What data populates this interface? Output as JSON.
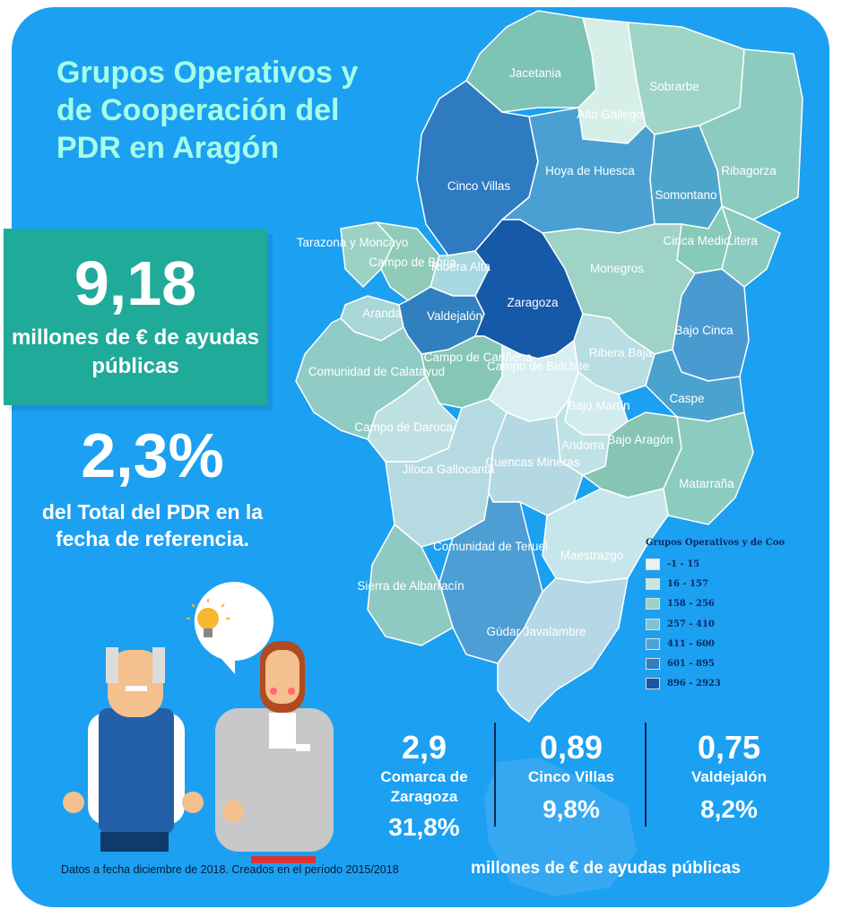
{
  "title": "Grupos Operativos y de Cooperación del PDR en Aragón",
  "headline": {
    "amount": "9,18",
    "amount_label": "millones de € de ayudas públicas"
  },
  "share": {
    "percent": "2,3%",
    "label": "del Total del PDR en la fecha de referencia."
  },
  "map_comarcas": [
    "Jacetania",
    "Sobrarbe",
    "Alto Gallego",
    "Cinco Villas",
    "Hoya de Huesca",
    "Ribagorza",
    "Somontano",
    "Tarazona y Moncayo",
    "Campo de Borja",
    "Ribera Alta",
    "Cinca Medio",
    "Litera",
    "Monegros",
    "Zaragoza",
    "Aranda",
    "Valdejalón",
    "Bajo Cinca",
    "Ribera Baja",
    "Campo de Cariñena",
    "Campo de Belchite",
    "Comunidad de Calatayud",
    "Caspe",
    "Bajo Martín",
    "Campo de Daroca",
    "Andorra",
    "Bajo Aragón",
    "Jiloca Gallocanta",
    "Cuencas Mineras",
    "Matarraña",
    "Comunidad de Teruel",
    "Maestrazgo",
    "Sierra de Albarracín",
    "Gúdar Javalambre"
  ],
  "legend": {
    "title": "Grupos Operativos y de Coo",
    "classes": [
      {
        "label": "-1 - 15",
        "color": "#e7f4f2"
      },
      {
        "label": "16 - 157",
        "color": "#c7e8df"
      },
      {
        "label": "158 - 256",
        "color": "#9dd3c3"
      },
      {
        "label": "257 - 410",
        "color": "#7ec3d3"
      },
      {
        "label": "411 - 600",
        "color": "#4fa2d2"
      },
      {
        "label": "601 - 895",
        "color": "#2f7cc0"
      },
      {
        "label": "896 - 2923",
        "color": "#1658a8"
      }
    ]
  },
  "stats": [
    {
      "value": "2,9",
      "name": "Comarca de Zaragoza",
      "percent": "31,8%"
    },
    {
      "value": "0,89",
      "name": "Cinco Villas",
      "percent": "9,8%"
    },
    {
      "value": "0,75",
      "name": "Valdejalón",
      "percent": "8,2%"
    }
  ],
  "footnote": "Datos a fecha diciembre de 2018. Creados en el período 2015/2018",
  "footer_caption": "millones de € de ayudas públicas",
  "colors": {
    "background": "#1ca0f2",
    "title": "#a6ffe8",
    "highlight_box": "#1faa99"
  }
}
